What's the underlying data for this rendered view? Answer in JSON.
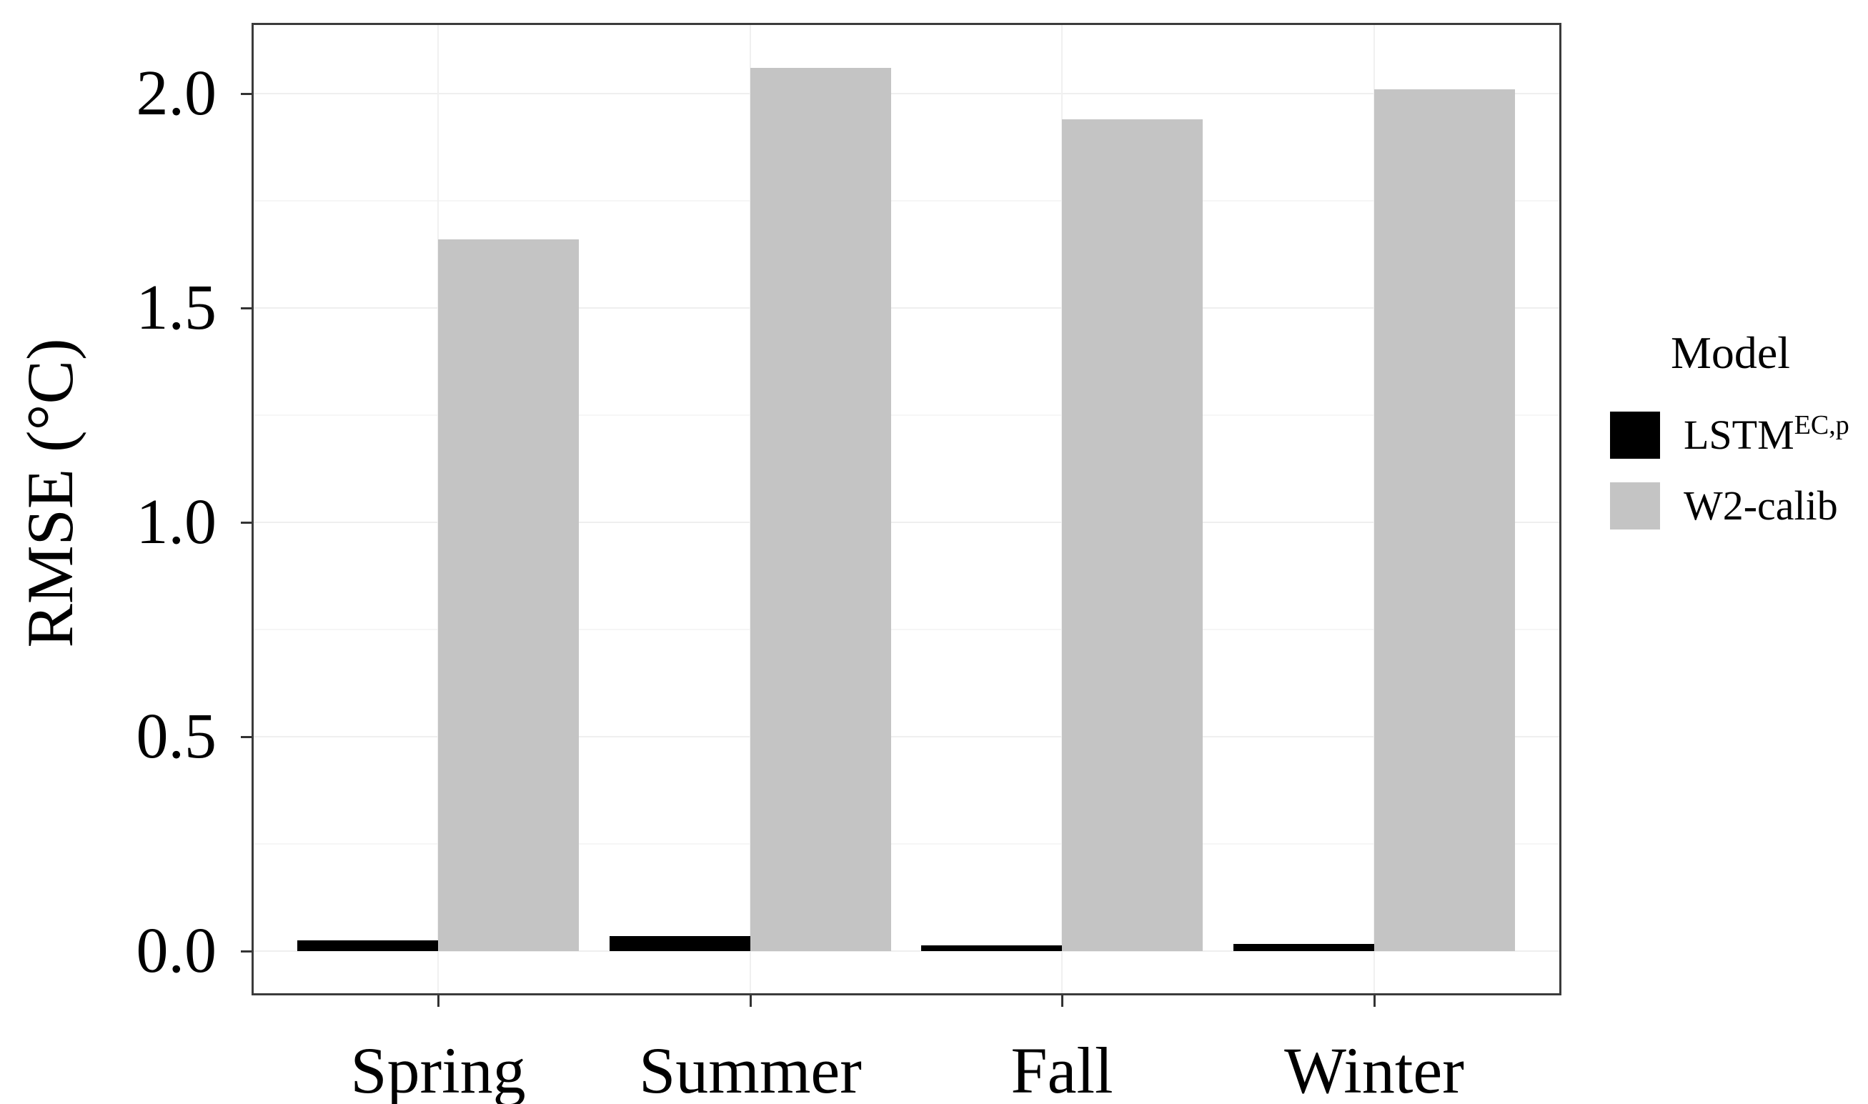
{
  "chart_data": {
    "type": "bar",
    "title": "",
    "categories": [
      "Spring",
      "Summer",
      "Fall",
      "Winter"
    ],
    "series": [
      {
        "name": "LSTM EC,p",
        "color": "#000000",
        "values": [
          0.025,
          0.035,
          0.013,
          0.017
        ]
      },
      {
        "name": "W2-calib",
        "color": "#c4c4c4",
        "values": [
          1.66,
          2.06,
          1.94,
          2.01
        ]
      }
    ],
    "xlabel": "",
    "ylabel": "RMSE (°C)",
    "ylim": [
      -0.103,
      2.165
    ],
    "yticks": [
      0.0,
      0.5,
      1.0,
      1.5,
      2.0
    ],
    "ytick_labels": [
      "0.0",
      "0.5",
      "1.0",
      "1.5",
      "2.0"
    ],
    "minor_yticks": [
      0.25,
      0.75,
      1.25,
      1.75
    ],
    "grid": "horizontal major+minor and vertical category gridlines, very light gray; dark panel border",
    "legend": {
      "title": "Model",
      "position": "right",
      "entries": [
        {
          "label_base": "LSTM",
          "label_sup": "EC,p",
          "color": "#000000"
        },
        {
          "label_base": "W2-calib",
          "label_sup": "",
          "color": "#c4c4c4"
        }
      ]
    }
  }
}
